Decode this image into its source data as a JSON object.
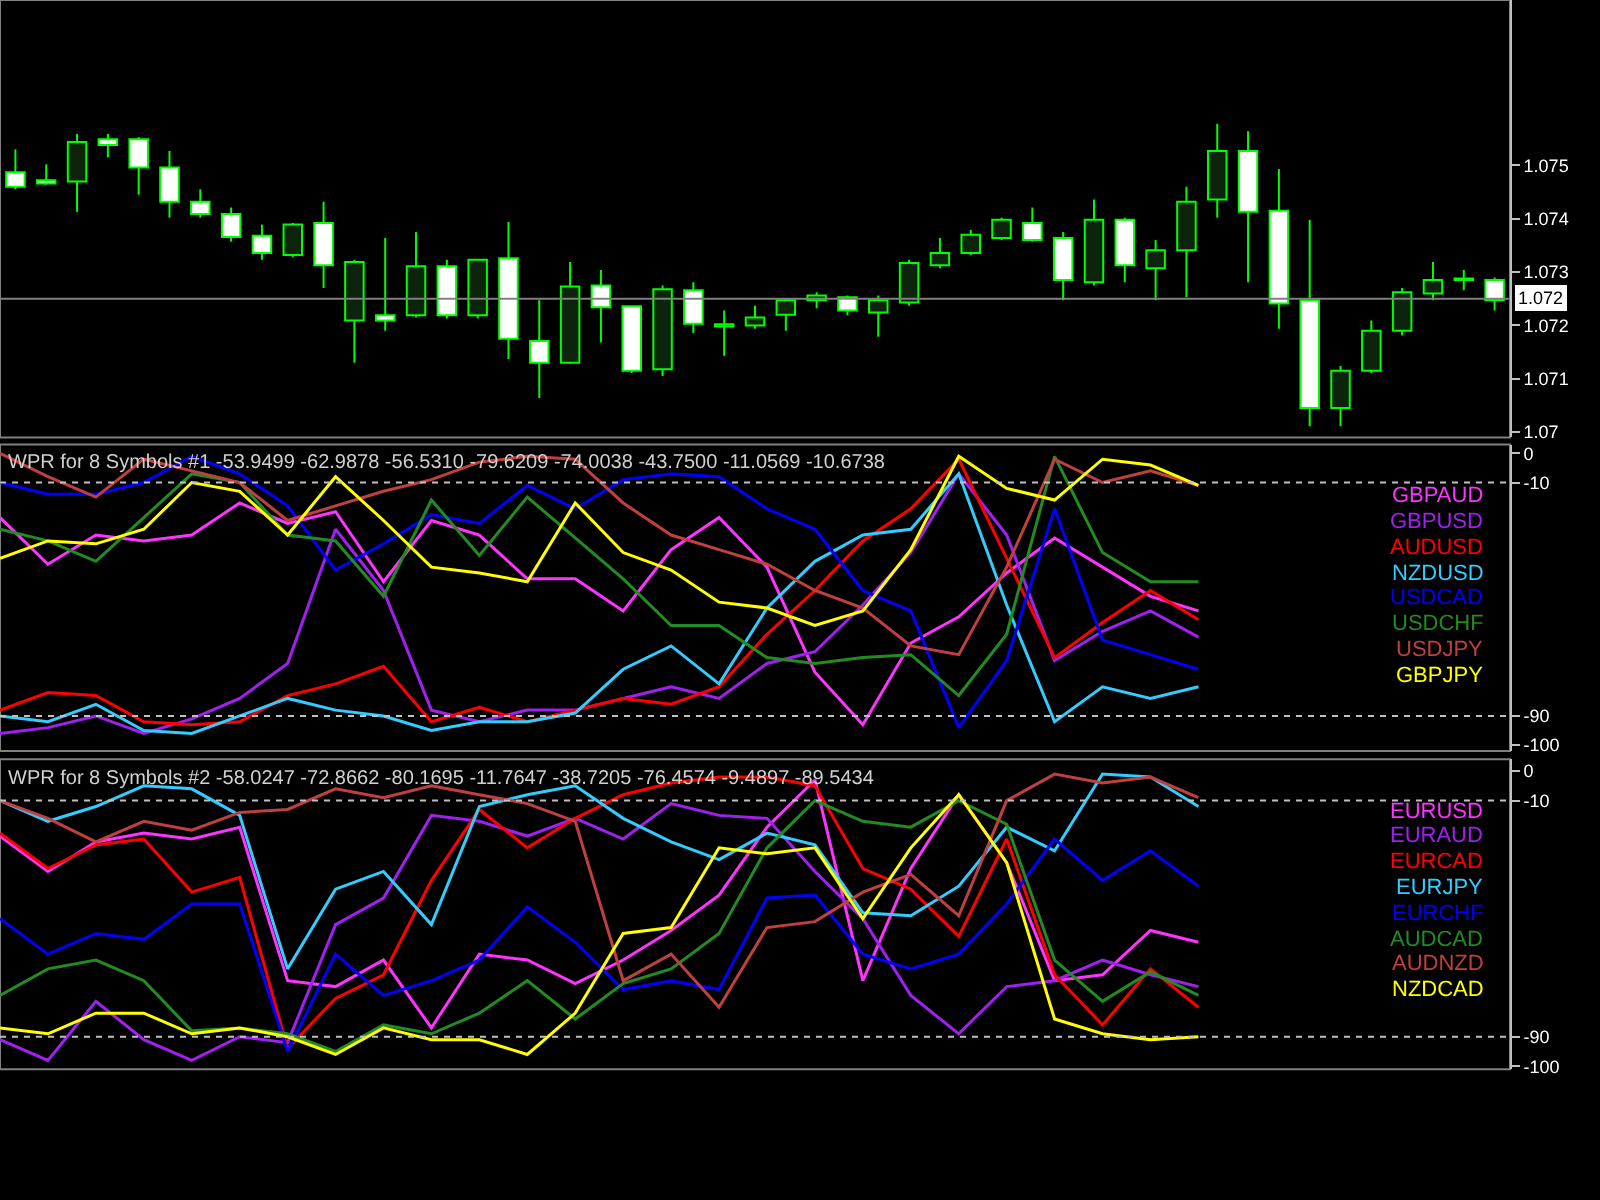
{
  "chart_data": [
    {
      "type": "candlestick",
      "color": "#00ff00",
      "tick_labels": "y",
      "grid": false,
      "categories": [
        null,
        null,
        null,
        null,
        null,
        null,
        null,
        null,
        null,
        null,
        null,
        null,
        null,
        null,
        null,
        null,
        null,
        null,
        null,
        null,
        null,
        null,
        null,
        null,
        null,
        null,
        null,
        null,
        null,
        null,
        null,
        null,
        null,
        null,
        null,
        null,
        null,
        null,
        null,
        null,
        null,
        null,
        null,
        null,
        null,
        null,
        null,
        null,
        null
      ],
      "ohlc": [
        [
          1.07487,
          1.0753,
          1.07455,
          1.0746
        ],
        [
          1.07472,
          1.07502,
          1.07464,
          1.07466
        ],
        [
          1.0747,
          1.07559,
          1.07413,
          1.07544
        ],
        [
          1.07549,
          1.07559,
          1.07515,
          1.07538
        ],
        [
          1.07549,
          1.07553,
          1.07445,
          1.07496
        ],
        [
          1.07496,
          1.07527,
          1.07402,
          1.07432
        ],
        [
          1.07432,
          1.07455,
          1.07402,
          1.07409
        ],
        [
          1.07409,
          1.07421,
          1.07357,
          1.07366
        ],
        [
          1.07368,
          1.07389,
          1.07323,
          1.07336
        ],
        [
          1.07332,
          1.07392,
          1.07328,
          1.07389
        ],
        [
          1.07392,
          1.07432,
          1.0727,
          1.07313
        ],
        [
          1.07209,
          1.07323,
          1.0713,
          1.07319
        ],
        [
          1.07219,
          1.07364,
          1.0719,
          1.07209
        ],
        [
          1.07219,
          1.07375,
          1.07215,
          1.07311
        ],
        [
          1.07311,
          1.07323,
          1.07213,
          1.07219
        ],
        [
          1.07219,
          1.07323,
          1.07213,
          1.07323
        ],
        [
          1.07326,
          1.07394,
          1.07137,
          1.07175
        ],
        [
          1.07171,
          1.07247,
          1.07064,
          1.0713
        ],
        [
          1.0713,
          1.07319,
          1.07128,
          1.07273
        ],
        [
          1.07275,
          1.07304,
          1.07168,
          1.07234
        ],
        [
          1.07236,
          1.07236,
          1.07111,
          1.07115
        ],
        [
          1.07118,
          1.07275,
          1.07105,
          1.07268
        ],
        [
          1.07266,
          1.07281,
          1.07186,
          1.07203
        ],
        [
          1.07198,
          1.07228,
          1.07143,
          1.07202
        ],
        [
          1.072,
          1.07237,
          1.07194,
          1.07215
        ],
        [
          1.0722,
          1.07251,
          1.0719,
          1.07247
        ],
        [
          1.07247,
          1.07262,
          1.07232,
          1.07256
        ],
        [
          1.07253,
          1.07256,
          1.07219,
          1.07228
        ],
        [
          1.07224,
          1.07256,
          1.07179,
          1.07247
        ],
        [
          1.07243,
          1.07323,
          1.07237,
          1.07317
        ],
        [
          1.07313,
          1.07364,
          1.07307,
          1.07336
        ],
        [
          1.07336,
          1.07379,
          1.07332,
          1.0737
        ],
        [
          1.07364,
          1.07402,
          1.0736,
          1.07398
        ],
        [
          1.07392,
          1.07421,
          1.07357,
          1.0736
        ],
        [
          1.07364,
          1.07375,
          1.07247,
          1.07285
        ],
        [
          1.07281,
          1.07436,
          1.07275,
          1.07398
        ],
        [
          1.07398,
          1.07402,
          1.07281,
          1.07313
        ],
        [
          1.07307,
          1.0736,
          1.07247,
          1.07341
        ],
        [
          1.07341,
          1.0746,
          1.07253,
          1.07432
        ],
        [
          1.07436,
          1.07578,
          1.07402,
          1.07527
        ],
        [
          1.07527,
          1.07564,
          1.07281,
          1.07413
        ],
        [
          1.07415,
          1.07493,
          1.07194,
          1.07241
        ],
        [
          1.07247,
          1.07398,
          1.07011,
          1.07045
        ],
        [
          1.07045,
          1.07124,
          1.07011,
          1.07115
        ],
        [
          1.07115,
          1.07209,
          1.07111,
          1.0719
        ],
        [
          1.0719,
          1.0727,
          1.07181,
          1.07262
        ],
        [
          1.0726,
          1.07319,
          1.07247,
          1.07285
        ],
        [
          1.07285,
          1.07304,
          1.07266,
          1.07288
        ],
        [
          1.07285,
          1.0729,
          1.07228,
          1.07247
        ]
      ],
      "ylim": [
        1.0699,
        1.0781
      ],
      "yticks": [
        1.075,
        1.074,
        1.073,
        1.072,
        1.071,
        1.07
      ],
      "ref_lines": [
        {
          "axis": "y",
          "value": 1.0725,
          "label": "1.072",
          "color": "#808080",
          "line_style": "solid"
        }
      ]
    },
    {
      "type": "line",
      "title": "WPR for 8 Symbols #1 -53.9499 -62.9878 -56.5310 -79.6209 -74.0038 -43.7500 -11.0569 -10.6738",
      "tick_labels": "y",
      "grid": false,
      "legend": "top right",
      "line_style": "solid",
      "categories": [
        null,
        null,
        null,
        null,
        null,
        null,
        null,
        null,
        null,
        null,
        null,
        null,
        null,
        null,
        null,
        null,
        null,
        null,
        null,
        null,
        null,
        null,
        null,
        null,
        null,
        null
      ],
      "ylim": [
        -102,
        3
      ],
      "yticks": [
        0,
        -10,
        -90,
        -100
      ],
      "ref_lines": [
        {
          "axis": "y",
          "value": -10,
          "color": "#c0c0c0",
          "line_style": "dotted"
        },
        {
          "axis": "y",
          "value": -90,
          "color": "#c0c0c0",
          "line_style": "dotted"
        }
      ],
      "series": [
        {
          "name": "GBPAUD",
          "color": "#ff33ff",
          "values": [
            -22,
            -38,
            -28,
            -30,
            -28,
            -17,
            -24,
            -20,
            -44,
            -23,
            -28,
            -43,
            -43,
            -54,
            -33,
            -22,
            -39,
            -75,
            -93,
            -65,
            -56,
            -41,
            -29,
            -39,
            -49,
            -54
          ]
        },
        {
          "name": "GBPUSD",
          "color": "#a020f0",
          "values": [
            -96,
            -94,
            -90,
            -96,
            -91,
            -84,
            -72,
            -26,
            -47,
            -88,
            -92,
            -88,
            -88,
            -84,
            -80,
            -84,
            -72,
            -68,
            -52,
            -34,
            -7,
            -28,
            -71,
            -61,
            -54,
            -63
          ]
        },
        {
          "name": "AUDUSD",
          "color": "#ff0000",
          "values": [
            -88,
            -82,
            -83,
            -92,
            -93,
            -92,
            -83,
            -79,
            -73,
            -92,
            -87,
            -92,
            -88,
            -84,
            -86,
            -80,
            -62,
            -47,
            -30,
            -19,
            -2,
            -36,
            -70,
            -58,
            -47,
            -57
          ]
        },
        {
          "name": "NZDUSD",
          "color": "#33ccff",
          "values": [
            -90,
            -92,
            -86,
            -95,
            -96,
            -90,
            -84,
            -88,
            -90,
            -95,
            -92,
            -92,
            -89,
            -74,
            -66,
            -79,
            -53,
            -37,
            -28,
            -26,
            -7,
            -52,
            -92,
            -80,
            -84,
            -80
          ]
        },
        {
          "name": "USDCAD",
          "color": "#0000ff",
          "values": [
            -10,
            -14,
            -14,
            -10,
            -1,
            -7,
            -18,
            -40,
            -31,
            -21,
            -24,
            -11,
            -19,
            -9,
            -7,
            -8,
            -19,
            -26,
            -47,
            -54,
            -94,
            -71,
            -19,
            -64,
            -69,
            -74
          ]
        },
        {
          "name": "USDCHF",
          "color": "#228b22",
          "values": [
            -26,
            -30,
            -37,
            -22,
            -7,
            -10,
            -28,
            -30,
            -49,
            -16,
            -35,
            -15,
            -29,
            -43,
            -59,
            -59,
            -70,
            -72,
            -70,
            -69,
            -83,
            -62,
            -1,
            -34,
            -44,
            -44
          ]
        },
        {
          "name": "USDJPY",
          "color": "#c04040",
          "values": [
            0,
            -8,
            -15,
            -2,
            -6,
            -10,
            -23,
            -18,
            -13,
            -9,
            -3,
            -1,
            -2,
            -17,
            -28,
            -33,
            -38,
            -47,
            -53,
            -66,
            -69,
            -39,
            -2,
            -10,
            -6,
            -11
          ]
        },
        {
          "name": "GBPJPY",
          "color": "#ffff00",
          "values": [
            -36,
            -30,
            -31,
            -26,
            -10,
            -13,
            -28,
            -8,
            -23,
            -39,
            -41,
            -44,
            -17,
            -34,
            -40,
            -51,
            -53,
            -59,
            -54,
            -33,
            -1,
            -12,
            -16,
            -2,
            -4,
            -11
          ]
        }
      ]
    },
    {
      "type": "line",
      "title": "WPR for 8 Symbols #2 -58.0247 -72.8662 -80.1695 -11.7647 -38.7205 -76.4574 -9.4897 -89.5434",
      "tick_labels": "y",
      "grid": false,
      "legend": "top right",
      "line_style": "solid",
      "categories": [
        null,
        null,
        null,
        null,
        null,
        null,
        null,
        null,
        null,
        null,
        null,
        null,
        null,
        null,
        null,
        null,
        null,
        null,
        null,
        null,
        null,
        null,
        null,
        null,
        null,
        null
      ],
      "ylim": [
        -101,
        4
      ],
      "yticks": [
        0,
        -10,
        -90,
        -100
      ],
      "ref_lines": [
        {
          "axis": "y",
          "value": -10,
          "color": "#c0c0c0",
          "line_style": "dotted"
        },
        {
          "axis": "y",
          "value": -90,
          "color": "#c0c0c0",
          "line_style": "dotted"
        }
      ],
      "series": [
        {
          "name": "EURUSD",
          "color": "#ff33ff",
          "values": [
            -22,
            -34,
            -24,
            -21,
            -23,
            -19,
            -71,
            -73,
            -64,
            -87,
            -62,
            -64,
            -72,
            -64,
            -54,
            -42,
            -19,
            -3,
            -71,
            -33,
            -8,
            -31,
            -71,
            -69,
            -54,
            -58
          ]
        },
        {
          "name": "EURAUD",
          "color": "#a020f0",
          "values": [
            -91,
            -98,
            -78,
            -91,
            -98,
            -90,
            -92,
            -52,
            -43,
            -15,
            -17,
            -22,
            -16,
            -23,
            -11,
            -15,
            -16,
            -34,
            -50,
            -76,
            -89,
            -73,
            -71,
            -64,
            -69,
            -73
          ]
        },
        {
          "name": "EURCAD",
          "color": "#ff0000",
          "values": [
            -21,
            -33,
            -25,
            -23,
            -41,
            -36,
            -94,
            -77,
            -69,
            -37,
            -13,
            -26,
            -16,
            -8,
            -4,
            -2,
            -2,
            -5,
            -33,
            -40,
            -56,
            -23,
            -69,
            -86,
            -67,
            -80
          ]
        },
        {
          "name": "EURJPY",
          "color": "#33ccff",
          "values": [
            -10,
            -17,
            -12,
            -5,
            -6,
            -15,
            -67,
            -40,
            -34,
            -52,
            -12,
            -8,
            -5,
            -16,
            -24,
            -30,
            -21,
            -25,
            -48,
            -49,
            -39,
            -19,
            -27,
            -1,
            -2,
            -12
          ]
        },
        {
          "name": "EURCHF",
          "color": "#0000ff",
          "values": [
            -50,
            -62,
            -55,
            -57,
            -45,
            -45,
            -95,
            -62,
            -76,
            -71,
            -64,
            -46,
            -58,
            -74,
            -71,
            -74,
            -43,
            -42,
            -62,
            -67,
            -62,
            -45,
            -23,
            -37,
            -27,
            -39
          ]
        },
        {
          "name": "AUDCAD",
          "color": "#228b22",
          "values": [
            -76,
            -67,
            -64,
            -71,
            -88,
            -87,
            -89,
            -95,
            -86,
            -89,
            -82,
            -71,
            -84,
            -72,
            -67,
            -55,
            -26,
            -10,
            -17,
            -19,
            -10,
            -18,
            -64,
            -78,
            -68,
            -76
          ]
        },
        {
          "name": "AUDNZD",
          "color": "#c04040",
          "values": [
            -10,
            -16,
            -24,
            -17,
            -20,
            -14,
            -13,
            -6,
            -9,
            -5,
            -8,
            -11,
            -17,
            -71,
            -62,
            -80,
            -53,
            -51,
            -41,
            -35,
            -49,
            -10,
            -1,
            -4,
            -2,
            -9
          ]
        },
        {
          "name": "NZDCAD",
          "color": "#ffff00",
          "values": [
            -87,
            -89,
            -82,
            -82,
            -89,
            -87,
            -90,
            -96,
            -87,
            -91,
            -91,
            -96,
            -82,
            -55,
            -53,
            -26,
            -28,
            -26,
            -50,
            -26,
            -8,
            -31,
            -84,
            -89,
            -91,
            -90
          ]
        }
      ]
    }
  ]
}
